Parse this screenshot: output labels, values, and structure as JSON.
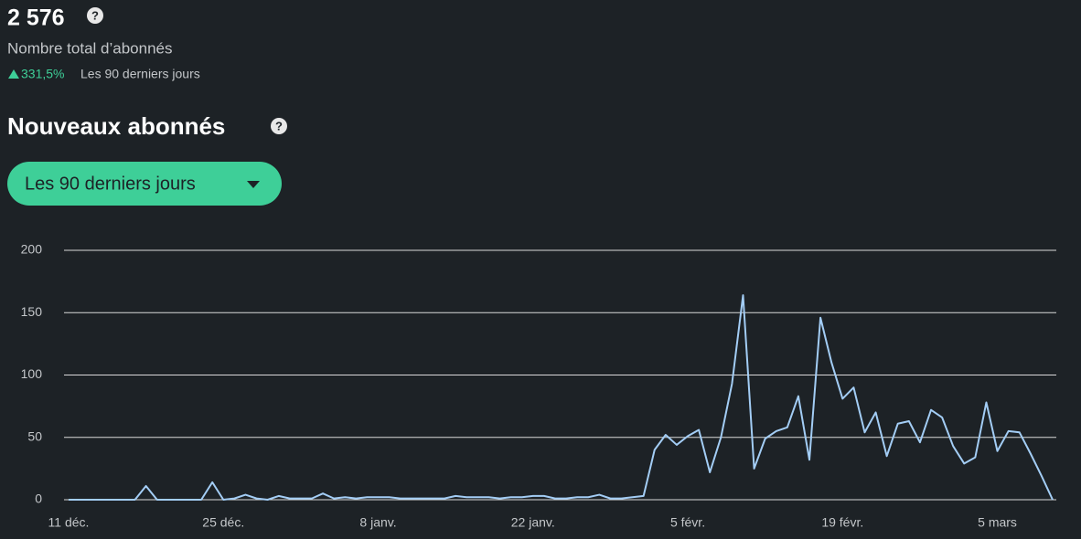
{
  "header": {
    "total": "2 576",
    "total_label": "Nombre total d’abonnés",
    "growth": "331,5%",
    "growth_period": "Les 90 derniers jours"
  },
  "section_title": "Nouveaux abonnés",
  "filter_button": "Les 90 derniers jours",
  "chart_data": {
    "type": "line",
    "categories": [
      "11 déc.",
      null,
      null,
      null,
      null,
      null,
      null,
      null,
      null,
      null,
      null,
      null,
      null,
      null,
      "25 déc.",
      null,
      null,
      null,
      null,
      null,
      null,
      null,
      null,
      null,
      null,
      null,
      null,
      null,
      "8 janv.",
      null,
      null,
      null,
      null,
      null,
      null,
      null,
      null,
      null,
      null,
      null,
      null,
      null,
      "22 janv.",
      null,
      null,
      null,
      null,
      null,
      null,
      null,
      null,
      null,
      null,
      null,
      null,
      null,
      "5 févr.",
      null,
      null,
      null,
      null,
      null,
      null,
      null,
      null,
      null,
      null,
      null,
      null,
      null,
      "19 févr.",
      null,
      null,
      null,
      null,
      null,
      null,
      null,
      null,
      null,
      null,
      null,
      null,
      null,
      "5 mars",
      null,
      null,
      null,
      null,
      null
    ],
    "values": [
      0,
      0,
      0,
      0,
      0,
      0,
      0,
      11,
      0,
      0,
      0,
      0,
      0,
      14,
      0,
      1,
      4,
      1,
      0,
      3,
      1,
      1,
      1,
      5,
      1,
      2,
      1,
      2,
      2,
      2,
      1,
      1,
      1,
      1,
      1,
      3,
      2,
      2,
      2,
      1,
      2,
      2,
      3,
      3,
      1,
      1,
      2,
      2,
      4,
      1,
      1,
      2,
      3,
      40,
      52,
      44,
      51,
      56,
      22,
      50,
      93,
      164,
      25,
      49,
      55,
      58,
      83,
      32,
      146,
      110,
      81,
      90,
      54,
      70,
      35,
      61,
      63,
      46,
      72,
      66,
      43,
      29,
      34,
      78,
      39,
      55,
      54,
      37,
      19,
      0
    ],
    "color": "#a3cdf5",
    "ylim": [
      0,
      200
    ],
    "yticks": [
      0,
      50,
      100,
      150,
      200
    ],
    "grid": true
  }
}
